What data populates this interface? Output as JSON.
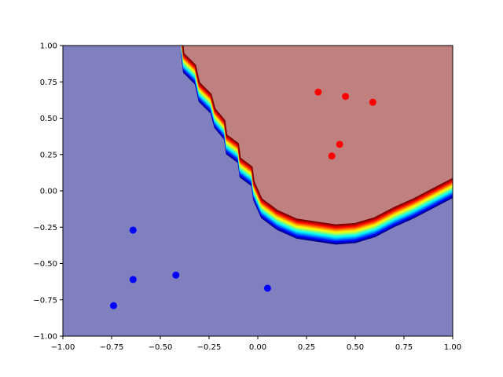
{
  "chart_data": {
    "type": "scatter",
    "title": "",
    "xlabel": "",
    "ylabel": "",
    "xlim": [
      -1.0,
      1.0
    ],
    "ylim": [
      -1.0,
      1.0
    ],
    "x_ticks": [
      "−1.00",
      "−0.75",
      "−0.50",
      "−0.25",
      "0.00",
      "0.25",
      "0.50",
      "0.75",
      "1.00"
    ],
    "y_ticks": [
      "−1.00",
      "−0.75",
      "−0.50",
      "−0.25",
      "0.00",
      "0.25",
      "0.50",
      "0.75",
      "1.00"
    ],
    "grid": false,
    "legend": "none",
    "background_regions": {
      "negative_class_color": "#8080c0",
      "positive_class_color": "#c08080",
      "boundary_colormap": "jet"
    },
    "decision_boundary": [
      [
        -0.39,
        1.0
      ],
      [
        -0.38,
        0.88
      ],
      [
        -0.32,
        0.8
      ],
      [
        -0.3,
        0.68
      ],
      [
        -0.24,
        0.6
      ],
      [
        -0.22,
        0.5
      ],
      [
        -0.17,
        0.42
      ],
      [
        -0.16,
        0.32
      ],
      [
        -0.1,
        0.26
      ],
      [
        -0.09,
        0.16
      ],
      [
        -0.03,
        0.1
      ],
      [
        -0.02,
        0.0
      ],
      [
        0.02,
        -0.12
      ],
      [
        0.1,
        -0.2
      ],
      [
        0.2,
        -0.26
      ],
      [
        0.3,
        -0.28
      ],
      [
        0.4,
        -0.3
      ],
      [
        0.5,
        -0.29
      ],
      [
        0.6,
        -0.25
      ],
      [
        0.7,
        -0.18
      ],
      [
        0.8,
        -0.12
      ],
      [
        0.9,
        -0.05
      ],
      [
        1.0,
        0.02
      ]
    ],
    "series": [
      {
        "color": "#ff0000",
        "points": [
          [
            0.31,
            0.68
          ],
          [
            0.45,
            0.65
          ],
          [
            0.59,
            0.61
          ],
          [
            0.42,
            0.32
          ],
          [
            0.38,
            0.24
          ]
        ]
      },
      {
        "color": "#0000ff",
        "points": [
          [
            -0.64,
            -0.27
          ],
          [
            -0.64,
            -0.61
          ],
          [
            -0.42,
            -0.58
          ],
          [
            -0.74,
            -0.79
          ],
          [
            0.05,
            -0.67
          ]
        ]
      }
    ]
  }
}
